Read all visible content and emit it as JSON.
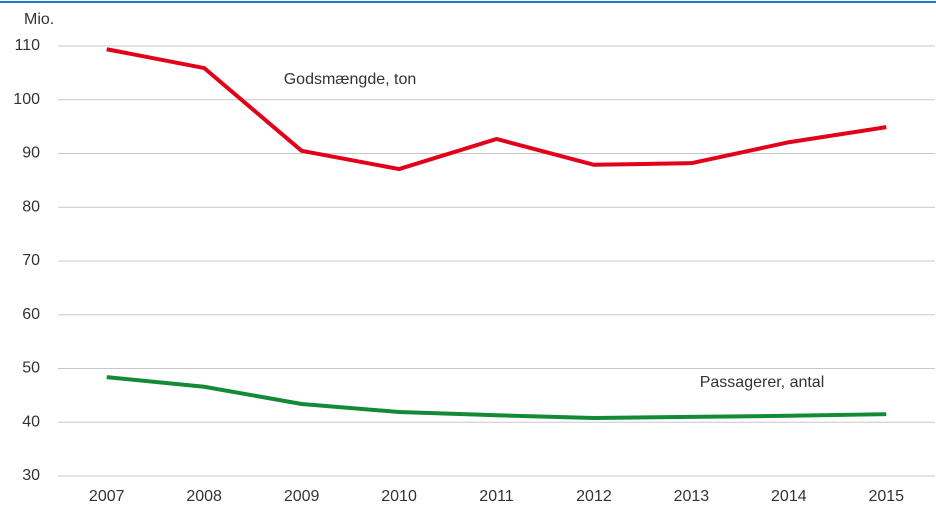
{
  "chart_data": {
    "type": "line",
    "y_axis_label": "Mio.",
    "categories": [
      "2007",
      "2008",
      "2009",
      "2010",
      "2011",
      "2012",
      "2013",
      "2014",
      "2015"
    ],
    "series": [
      {
        "name": "Godsmængde, ton",
        "color": "#e2001a",
        "values": [
          109.4,
          105.9,
          90.5,
          87.1,
          92.7,
          87.9,
          88.2,
          92.1,
          94.9
        ]
      },
      {
        "name": "Passagerer, antal",
        "color": "#138a36",
        "values": [
          48.4,
          46.6,
          43.4,
          41.9,
          41.3,
          40.8,
          41.0,
          41.2,
          41.5
        ]
      }
    ],
    "ylim": [
      30,
      110
    ],
    "yticks": [
      30,
      40,
      50,
      60,
      70,
      80,
      90,
      100,
      110
    ],
    "grid": true
  }
}
